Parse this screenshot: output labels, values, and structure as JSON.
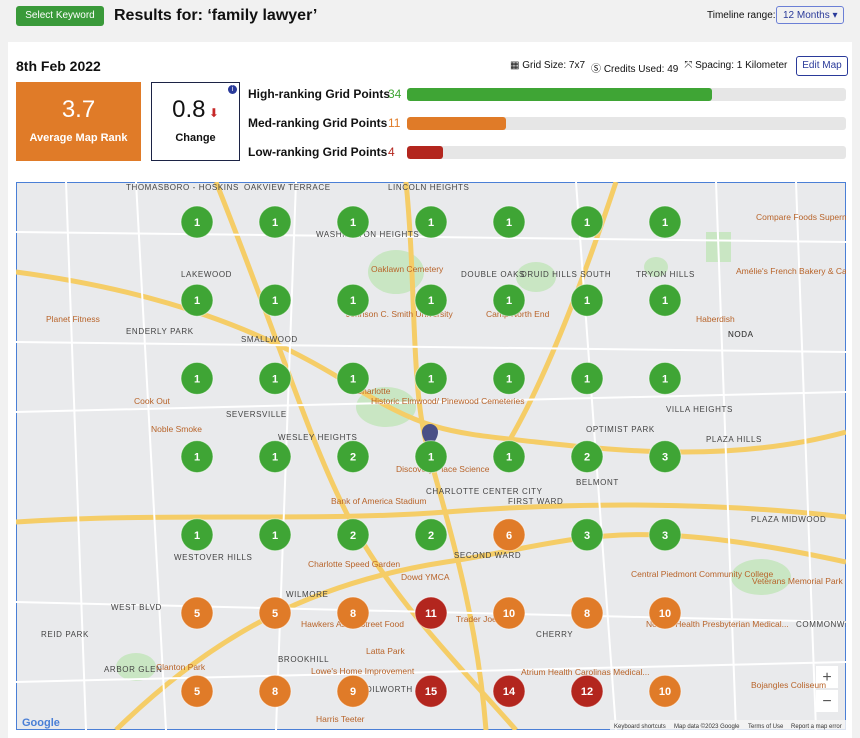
{
  "header": {
    "button": "Select Keyword",
    "title": "Results for: ‘family lawyer’",
    "timeline_label": "Timeline range:",
    "timeline_value": "12 Months"
  },
  "report": {
    "date": "8th Feb 2022",
    "grid_size_label": "Grid Size: 7x7",
    "credits_label": "Credits Used:",
    "credits_used": 49,
    "spacing_label": "Spacing: 1 Kilometer",
    "edit_button": "Edit Map"
  },
  "stats": {
    "average_rank": 3.7,
    "average_label": "Average Map Rank",
    "change": 0.8,
    "change_label": "Change",
    "info": "i"
  },
  "ranking": {
    "rows": [
      {
        "label": "High-ranking Grid Points",
        "count": 34,
        "color": "#3fa535"
      },
      {
        "label": "Med-ranking Grid Points",
        "count": 11,
        "color": "#e07b28"
      },
      {
        "label": "Low-ranking Grid Points",
        "count": 4,
        "color": "#b3261e"
      }
    ]
  },
  "grid": {
    "rows": [
      [
        1,
        1,
        1,
        1,
        1,
        1,
        1
      ],
      [
        1,
        1,
        1,
        1,
        1,
        1,
        1
      ],
      [
        1,
        1,
        1,
        1,
        1,
        1,
        1
      ],
      [
        1,
        1,
        2,
        1,
        1,
        2,
        3
      ],
      [
        1,
        1,
        2,
        2,
        6,
        3,
        3
      ],
      [
        5,
        5,
        8,
        11,
        10,
        8,
        10
      ],
      [
        5,
        8,
        9,
        15,
        14,
        12,
        10
      ]
    ]
  },
  "map": {
    "labels": [
      "THOMASBORO - HOSKINS",
      "OAKVIEW TERRACE",
      "LINCOLN HEIGHTS",
      "WASHINGTON HEIGHTS",
      "LAKEWOOD",
      "Oaklawn Cemetery",
      "DOUBLE OAKS",
      "DRUID HILLS SOUTH",
      "TRYON HILLS",
      "Compare Foods Supermarket",
      "Amélie's French Bakery & Café",
      "Haberdish",
      "ENDERLY PARK",
      "Planet Fitness",
      "Johnson C. Smith University",
      "Camp North End",
      "NODA",
      "SMALLWOOD",
      "OPTIMIST PARK",
      "VILLA HEIGHTS",
      "SEVERSVILLE",
      "Cook Out",
      "Noble Smoke",
      "Historic Elmwood/ Pinewood Cemeteries",
      "PLAZA HILLS",
      "WESLEY HEIGHTS",
      "Discovery Place Science",
      "CHARLOTTE CENTER CITY",
      "FIRST WARD",
      "BELMONT",
      "Bank of America Stadium",
      "PLAZA MIDWOOD",
      "WESTOVER HILLS",
      "SECOND WARD",
      "Charlotte Speed Garden",
      "Dowd YMCA",
      "Central Piedmont Community College",
      "Veterans Memorial Park",
      "WEST BLVD",
      "WILMORE",
      "Trader Joe's",
      "Novant Health Presbyterian Medical...",
      "COMMONWEALTH PARK",
      "REID PARK",
      "Hawkers Asian Street Food",
      "CHERRY",
      "ARBOR GLEN",
      "Clanton Park",
      "BROOKHILL",
      "Latta Park",
      "Atrium Health Carolinas Medical...",
      "Lowe's Home Improvement",
      "DILWORTH",
      "Bojangles Coliseum",
      "Harris Teeter",
      "Charlotte",
      "NODA"
    ],
    "zoom_in": "+",
    "zoom_out": "−",
    "google": "Google",
    "keyboard": "Keyboard shortcuts",
    "map_data": "Map data ©2023 Google",
    "terms": "Terms of Use",
    "report_error": "Report a map error"
  }
}
